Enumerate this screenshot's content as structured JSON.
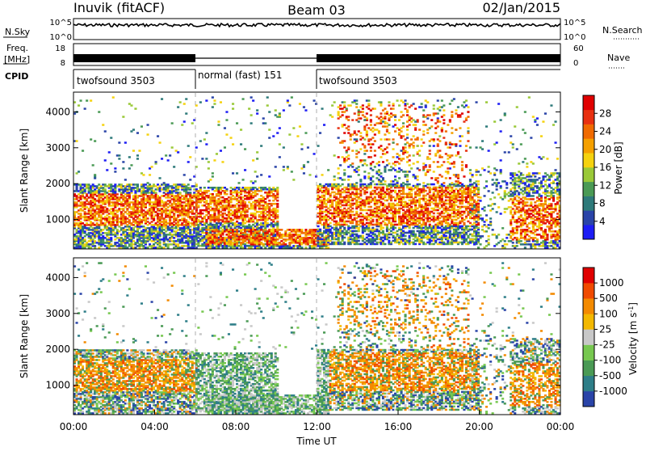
{
  "header": {
    "radar": "Inuvik (fitACF)",
    "beam": "Beam 03",
    "date": "02/Jan/2015"
  },
  "nsky_panel": {
    "left_label": "N.Sky",
    "left_ticks": [
      "10^5",
      "10^0"
    ],
    "right_ticks": [
      "10^5",
      "10^0"
    ],
    "right_label": "N.Search"
  },
  "freq_panel": {
    "left_label_1": "Freq.",
    "left_label_2": "[MHz]",
    "left_ticks": [
      "18",
      "8"
    ],
    "right_ticks": [
      "60",
      "0"
    ],
    "right_label": "Nave"
  },
  "cpid": {
    "label": "CPID",
    "segments": [
      {
        "name": "twofsound 3503",
        "start": 0.0,
        "end": 6.0
      },
      {
        "name": "normal (fast) 151",
        "start": 6.0,
        "end": 12.0
      },
      {
        "name": "twofsound 3503",
        "start": 12.0,
        "end": 24.0
      }
    ]
  },
  "colors": {
    "power": [
      "#1d1df5",
      "#2a44a8",
      "#2e7a7a",
      "#4a9a55",
      "#9ac938",
      "#f5d20f",
      "#f5a000",
      "#f06a00",
      "#e83010",
      "#e00000"
    ],
    "velocity": [
      "#e00000",
      "#f04a00",
      "#f38a00",
      "#f3b800",
      "#c8c8c8",
      "#77c850",
      "#4a9a55",
      "#2e7e88",
      "#2a44a8"
    ]
  },
  "chart_data": [
    {
      "type": "heatmap",
      "name": "power",
      "ylabel": "Slant Range [km]",
      "ylim": [
        180,
        4550
      ],
      "yticks": [
        "1000",
        "2000",
        "3000",
        "4000"
      ],
      "colorbar_label": "Power [dB]",
      "colorbar_ticks": [
        "4",
        "8",
        "12",
        "16",
        "20",
        "24",
        "28"
      ],
      "xlim": [
        0,
        24
      ],
      "grid": false
    },
    {
      "type": "heatmap",
      "name": "velocity",
      "ylabel": "Slant Range [km]",
      "ylim": [
        180,
        4550
      ],
      "yticks": [
        "1000",
        "2000",
        "3000",
        "4000"
      ],
      "colorbar_label": "Velocity [m s",
      "colorbar_label_sup": "-1",
      "colorbar_label_close": "]",
      "colorbar_ticks": [
        "1000",
        "500",
        "100",
        "25",
        "-25",
        "-100",
        "-500",
        "-1000"
      ],
      "xlim": [
        0,
        24
      ],
      "xticks": [
        "00:00",
        "04:00",
        "08:00",
        "12:00",
        "16:00",
        "20:00",
        "00:00"
      ],
      "xlabel": "Time UT"
    }
  ]
}
